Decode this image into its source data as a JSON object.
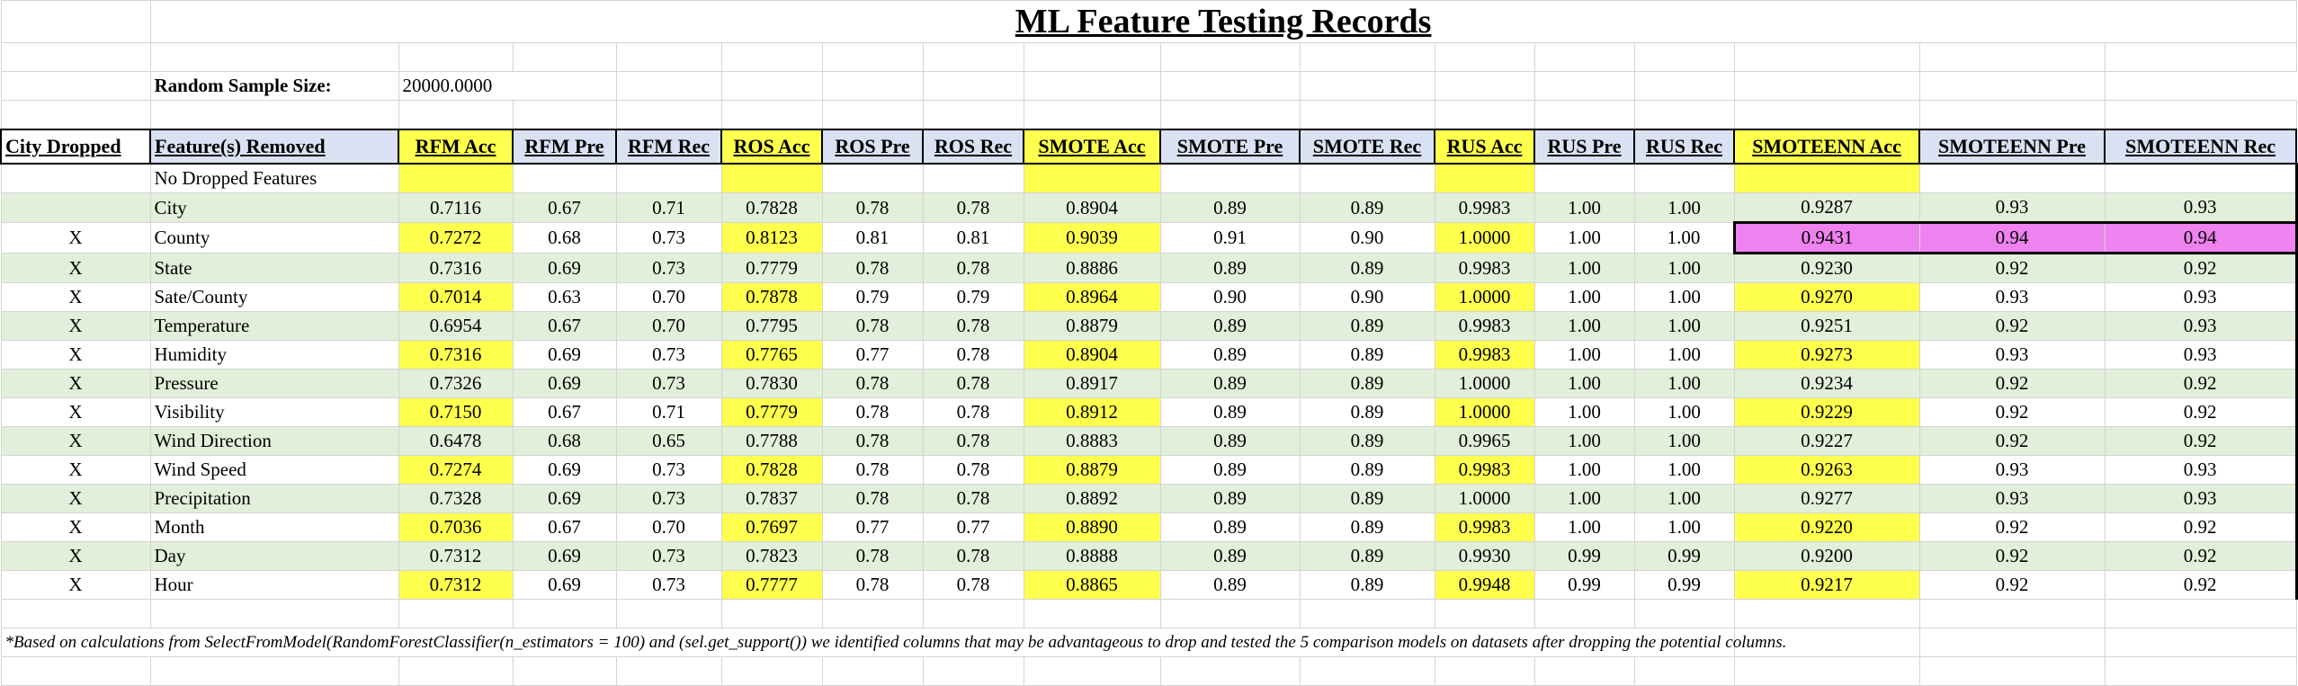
{
  "title": "ML Feature Testing Records",
  "sample": {
    "label": "Random Sample Size:",
    "value": "20000.0000"
  },
  "headers": [
    "City Dropped",
    "Feature(s) Removed",
    "RFM Acc",
    "RFM Pre",
    "RFM Rec",
    "ROS Acc",
    "ROS Pre",
    "ROS Rec",
    "SMOTE Acc",
    "SMOTE Pre",
    "SMOTE Rec",
    "RUS Acc",
    "RUS Pre",
    "RUS Rec",
    "SMOTEENN Acc",
    "SMOTEENN Pre",
    "SMOTEENN Rec"
  ],
  "rows": [
    {
      "mark": "",
      "feature": "No Dropped Features",
      "vals": [
        "",
        "",
        "",
        "",
        "",
        "",
        "",
        "",
        "",
        "",
        "",
        "",
        "",
        "",
        ""
      ]
    },
    {
      "mark": "",
      "feature": "City",
      "vals": [
        "0.7116",
        "0.67",
        "0.71",
        "0.7828",
        "0.78",
        "0.78",
        "0.8904",
        "0.89",
        "0.89",
        "0.9983",
        "1.00",
        "1.00",
        "0.9287",
        "0.93",
        "0.93"
      ]
    },
    {
      "mark": "X",
      "feature": "County",
      "vals": [
        "0.7272",
        "0.68",
        "0.73",
        "0.8123",
        "0.81",
        "0.81",
        "0.9039",
        "0.91",
        "0.90",
        "1.0000",
        "1.00",
        "1.00",
        "0.9431",
        "0.94",
        "0.94"
      ]
    },
    {
      "mark": "X",
      "feature": "State",
      "vals": [
        "0.7316",
        "0.69",
        "0.73",
        "0.7779",
        "0.78",
        "0.78",
        "0.8886",
        "0.89",
        "0.89",
        "0.9983",
        "1.00",
        "1.00",
        "0.9230",
        "0.92",
        "0.92"
      ]
    },
    {
      "mark": "X",
      "feature": "Sate/County",
      "vals": [
        "0.7014",
        "0.63",
        "0.70",
        "0.7878",
        "0.79",
        "0.79",
        "0.8964",
        "0.90",
        "0.90",
        "1.0000",
        "1.00",
        "1.00",
        "0.9270",
        "0.93",
        "0.93"
      ]
    },
    {
      "mark": "X",
      "feature": "Temperature",
      "vals": [
        "0.6954",
        "0.67",
        "0.70",
        "0.7795",
        "0.78",
        "0.78",
        "0.8879",
        "0.89",
        "0.89",
        "0.9983",
        "1.00",
        "1.00",
        "0.9251",
        "0.92",
        "0.93"
      ]
    },
    {
      "mark": "X",
      "feature": "Humidity",
      "vals": [
        "0.7316",
        "0.69",
        "0.73",
        "0.7765",
        "0.77",
        "0.78",
        "0.8904",
        "0.89",
        "0.89",
        "0.9983",
        "1.00",
        "1.00",
        "0.9273",
        "0.93",
        "0.93"
      ]
    },
    {
      "mark": "X",
      "feature": "Pressure",
      "vals": [
        "0.7326",
        "0.69",
        "0.73",
        "0.7830",
        "0.78",
        "0.78",
        "0.8917",
        "0.89",
        "0.89",
        "1.0000",
        "1.00",
        "1.00",
        "0.9234",
        "0.92",
        "0.92"
      ]
    },
    {
      "mark": "X",
      "feature": "Visibility",
      "vals": [
        "0.7150",
        "0.67",
        "0.71",
        "0.7779",
        "0.78",
        "0.78",
        "0.8912",
        "0.89",
        "0.89",
        "1.0000",
        "1.00",
        "1.00",
        "0.9229",
        "0.92",
        "0.92"
      ]
    },
    {
      "mark": "X",
      "feature": "Wind Direction",
      "vals": [
        "0.6478",
        "0.68",
        "0.65",
        "0.7788",
        "0.78",
        "0.78",
        "0.8883",
        "0.89",
        "0.89",
        "0.9965",
        "1.00",
        "1.00",
        "0.9227",
        "0.92",
        "0.92"
      ]
    },
    {
      "mark": "X",
      "feature": "Wind Speed",
      "vals": [
        "0.7274",
        "0.69",
        "0.73",
        "0.7828",
        "0.78",
        "0.78",
        "0.8879",
        "0.89",
        "0.89",
        "0.9983",
        "1.00",
        "1.00",
        "0.9263",
        "0.93",
        "0.93"
      ]
    },
    {
      "mark": "X",
      "feature": "Precipitation",
      "vals": [
        "0.7328",
        "0.69",
        "0.73",
        "0.7837",
        "0.78",
        "0.78",
        "0.8892",
        "0.89",
        "0.89",
        "1.0000",
        "1.00",
        "1.00",
        "0.9277",
        "0.93",
        "0.93"
      ]
    },
    {
      "mark": "X",
      "feature": "Month",
      "vals": [
        "0.7036",
        "0.67",
        "0.70",
        "0.7697",
        "0.77",
        "0.77",
        "0.8890",
        "0.89",
        "0.89",
        "0.9983",
        "1.00",
        "1.00",
        "0.9220",
        "0.92",
        "0.92"
      ]
    },
    {
      "mark": "X",
      "feature": "Day",
      "vals": [
        "0.7312",
        "0.69",
        "0.73",
        "0.7823",
        "0.78",
        "0.78",
        "0.8888",
        "0.89",
        "0.89",
        "0.9930",
        "0.99",
        "0.99",
        "0.9200",
        "0.92",
        "0.92"
      ]
    },
    {
      "mark": "X",
      "feature": "Hour",
      "vals": [
        "0.7312",
        "0.69",
        "0.73",
        "0.7777",
        "0.78",
        "0.78",
        "0.8865",
        "0.89",
        "0.89",
        "0.9948",
        "0.99",
        "0.99",
        "0.9217",
        "0.92",
        "0.92"
      ]
    }
  ],
  "footnote": "*Based on calculations from SelectFromModel(RandomForestClassifier(n_estimators = 100) and (sel.get_support()) we identified columns that may be advantageous to drop and tested the 5 comparison models on datasets after dropping the potential columns.",
  "colors": {
    "header_bg": "#d9e1f2",
    "accent_yellow": "#ffff4d",
    "row_green": "#e2efda",
    "best_pink": "#ee82ee"
  }
}
